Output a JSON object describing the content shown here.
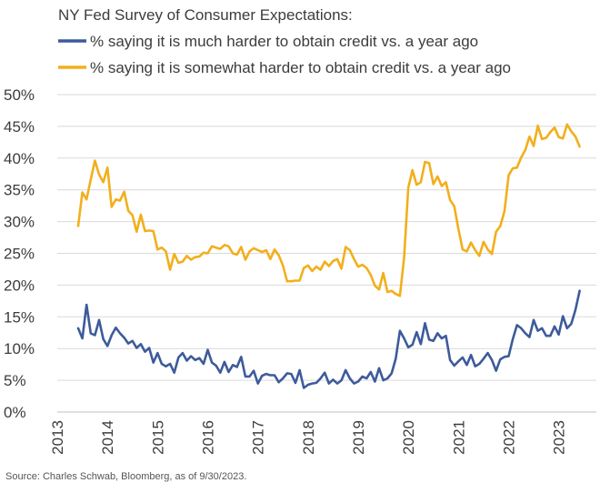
{
  "chart_data": {
    "type": "line",
    "title": "NY Fed Survey of Consumer Expectations:",
    "xlabel": "",
    "ylabel": "",
    "ylim": [
      0,
      50
    ],
    "xlim": [
      2013,
      2023.75
    ],
    "grid": "horizontal",
    "legend_position": "top",
    "y_ticks": [
      "0%",
      "5%",
      "10%",
      "15%",
      "20%",
      "25%",
      "30%",
      "35%",
      "40%",
      "45%",
      "50%"
    ],
    "x_ticks": [
      "2013",
      "2014",
      "2015",
      "2016",
      "2017",
      "2018",
      "2019",
      "2020",
      "2021",
      "2022",
      "2023"
    ],
    "x_start": "2013-06",
    "x_step": "monthly",
    "series": [
      {
        "name": "% saying it is much harder to obtain credit vs. a year ago",
        "color": "#3D5B9B",
        "values": [
          13.2,
          11.6,
          16.9,
          12.4,
          12.1,
          14.5,
          11.5,
          10.4,
          12.1,
          13.3,
          12.4,
          11.7,
          10.8,
          11.2,
          10.1,
          10.7,
          9.5,
          10.1,
          7.8,
          9.3,
          7.6,
          7.2,
          7.6,
          6.2,
          8.6,
          9.3,
          8.1,
          8.8,
          8.2,
          8.5,
          7.6,
          9.8,
          7.8,
          7.3,
          6.2,
          7.9,
          6.3,
          7.4,
          7.1,
          8.7,
          5.6,
          5.6,
          6.5,
          4.5,
          5.7,
          6.0,
          5.8,
          5.8,
          4.7,
          5.3,
          6.1,
          6.0,
          4.6,
          6.6,
          3.8,
          4.3,
          4.5,
          4.6,
          5.3,
          6.2,
          4.5,
          5.1,
          4.5,
          5.0,
          6.6,
          5.3,
          4.5,
          4.8,
          5.6,
          5.3,
          6.3,
          4.8,
          6.9,
          5.0,
          5.3,
          6.1,
          8.4,
          12.8,
          11.6,
          10.2,
          10.6,
          12.6,
          10.7,
          14.0,
          11.4,
          11.2,
          12.4,
          11.6,
          12.0,
          8.2,
          7.3,
          8.0,
          8.6,
          7.4,
          9.0,
          7.2,
          7.6,
          8.4,
          9.3,
          8.2,
          6.5,
          8.3,
          8.7,
          8.8,
          11.5,
          13.7,
          13.2,
          12.4,
          11.8,
          14.5,
          12.8,
          13.2,
          12.0,
          12.0,
          13.5,
          12.2,
          15.1,
          13.2,
          13.9,
          16.1,
          19.1
        ]
      },
      {
        "name": "% saying it is somewhat harder to obtain credit vs. a year ago",
        "color": "#F2AF1C",
        "values": [
          29.3,
          34.6,
          33.5,
          36.6,
          39.6,
          37.4,
          36.2,
          38.5,
          32.3,
          33.5,
          33.3,
          34.7,
          31.7,
          31.0,
          28.4,
          31.1,
          28.5,
          28.6,
          28.5,
          25.6,
          25.9,
          25.3,
          22.4,
          24.9,
          23.5,
          23.7,
          24.6,
          24.0,
          24.4,
          24.5,
          25.1,
          25.0,
          26.1,
          25.9,
          25.7,
          26.3,
          26.1,
          25.0,
          24.8,
          26.0,
          24.0,
          25.3,
          25.8,
          25.5,
          25.2,
          25.5,
          24.1,
          25.6,
          24.7,
          23.1,
          20.6,
          20.6,
          20.7,
          20.7,
          22.7,
          23.1,
          22.2,
          22.9,
          22.4,
          23.7,
          23.0,
          23.8,
          24.1,
          22.6,
          26.0,
          25.5,
          24.1,
          22.9,
          23.2,
          22.7,
          21.6,
          19.9,
          19.3,
          21.9,
          18.9,
          19.1,
          18.6,
          18.3,
          24.3,
          35.3,
          38.1,
          35.8,
          36.2,
          39.4,
          39.2,
          35.9,
          37.1,
          35.6,
          36.2,
          33.4,
          32.4,
          28.8,
          25.6,
          25.3,
          26.7,
          25.5,
          24.6,
          26.8,
          25.6,
          24.9,
          28.4,
          29.3,
          31.6,
          37.3,
          38.4,
          38.5,
          40.1,
          41.3,
          43.4,
          41.9,
          45.1,
          43.0,
          43.2,
          44.1,
          44.8,
          43.3,
          43.1,
          45.3,
          44.2,
          43.4,
          41.8
        ]
      }
    ]
  },
  "source_note": "Source: Charles Schwab, Bloomberg, as of 9/30/2023."
}
